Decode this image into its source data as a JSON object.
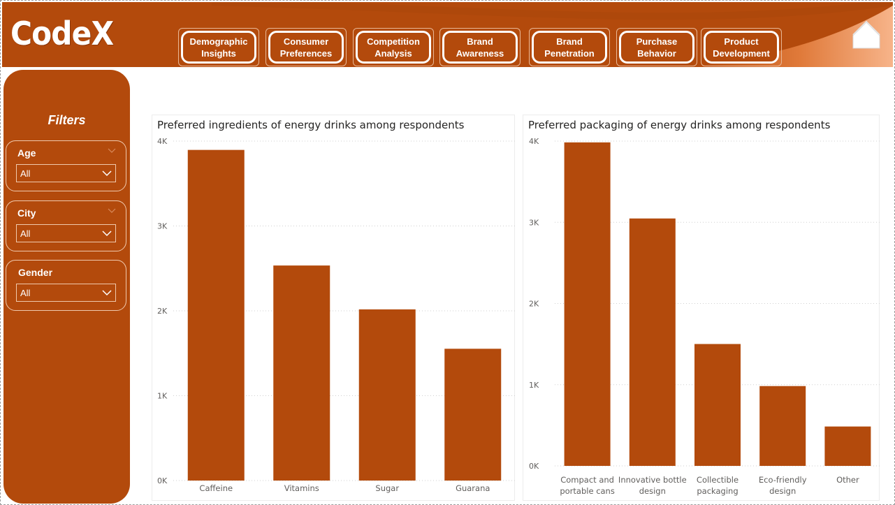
{
  "app": {
    "logo": "CodeX"
  },
  "colors": {
    "brand": "#b34a0c",
    "bar": "#b34a0c",
    "accent_light": "#f4a070"
  },
  "nav": {
    "items": [
      {
        "label": "Demographic\nInsights"
      },
      {
        "label": "Consumer\nPreferences"
      },
      {
        "label": "Competition\nAnalysis"
      },
      {
        "label": "Brand\nAwareness"
      },
      {
        "label": "Brand\nPenetration"
      },
      {
        "label": "Purchase\nBehavior"
      },
      {
        "label": "Product\nDevelopment"
      }
    ],
    "home_icon": "home-icon"
  },
  "sidebar": {
    "title": "Filters",
    "filters": [
      {
        "label": "Age",
        "value": "All"
      },
      {
        "label": "City",
        "value": "All"
      },
      {
        "label": "Gender",
        "value": "All"
      }
    ]
  },
  "chart_data": [
    {
      "type": "bar",
      "title": "Preferred ingredients of energy drinks among respondents",
      "categories": [
        "Caffeine",
        "Vitamins",
        "Sugar",
        "Guarana"
      ],
      "values": [
        3896,
        2534,
        2017,
        1553
      ],
      "ylim": [
        0,
        4000
      ],
      "yticks": [
        "0K",
        "1K",
        "2K",
        "3K",
        "4K"
      ],
      "xlabel": "",
      "ylabel": "",
      "grid": true
    },
    {
      "type": "bar",
      "title": "Preferred packaging of energy drinks among respondents",
      "categories": [
        "Compact and portable cans",
        "Innovative bottle design",
        "Collectible packaging",
        "Eco-friendly design",
        "Other"
      ],
      "values": [
        3984,
        3047,
        1501,
        983,
        485
      ],
      "ylim": [
        0,
        4000
      ],
      "yticks": [
        "0K",
        "1K",
        "2K",
        "3K",
        "4K"
      ],
      "xlabel": "",
      "ylabel": "",
      "grid": true
    }
  ]
}
